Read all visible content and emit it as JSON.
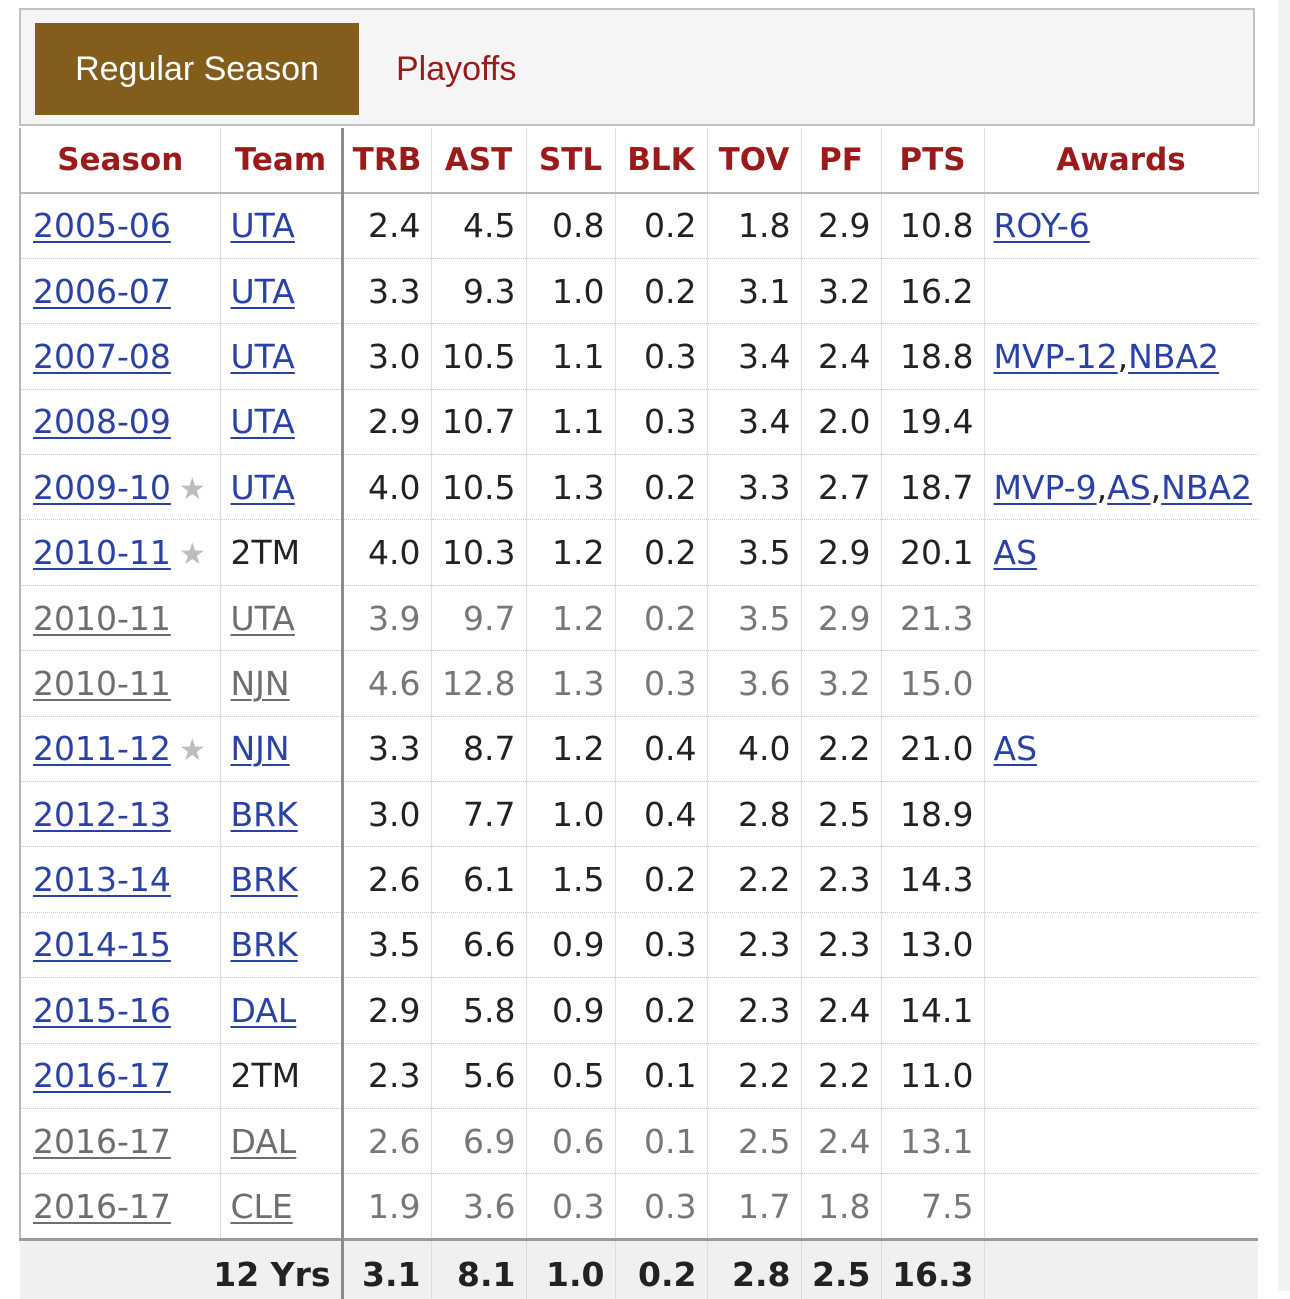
{
  "tabs": {
    "regular_season": "Regular Season",
    "playoffs": "Playoffs"
  },
  "colors": {
    "active_tab": "#835d1b",
    "header_text": "#9b1b1b",
    "link": "#2a41a6"
  },
  "headers": {
    "season": "Season",
    "team": "Team",
    "trb": "TRB",
    "ast": "AST",
    "stl": "STL",
    "blk": "BLK",
    "tov": "TOV",
    "pf": "PF",
    "pts": "PTS",
    "awards": "Awards"
  },
  "rows": [
    {
      "season": "2005-06",
      "team": "UTA",
      "trb": "2.4",
      "ast": "4.5",
      "stl": "0.8",
      "blk": "0.2",
      "tov": "1.8",
      "pf": "2.9",
      "pts": "10.8",
      "awards": [
        "ROY-6"
      ]
    },
    {
      "season": "2006-07",
      "team": "UTA",
      "trb": "3.3",
      "ast": "9.3",
      "stl": "1.0",
      "blk": "0.2",
      "tov": "3.1",
      "pf": "3.2",
      "pts": "16.2",
      "awards": []
    },
    {
      "season": "2007-08",
      "team": "UTA",
      "trb": "3.0",
      "ast": "10.5",
      "stl": "1.1",
      "blk": "0.3",
      "tov": "3.4",
      "pf": "2.4",
      "pts": "18.8",
      "awards": [
        "MVP-12",
        "NBA2"
      ]
    },
    {
      "season": "2008-09",
      "team": "UTA",
      "trb": "2.9",
      "ast": "10.7",
      "stl": "1.1",
      "blk": "0.3",
      "tov": "3.4",
      "pf": "2.0",
      "pts": "19.4",
      "awards": []
    },
    {
      "season": "2009-10",
      "team": "UTA",
      "trb": "4.0",
      "ast": "10.5",
      "stl": "1.3",
      "blk": "0.2",
      "tov": "3.3",
      "pf": "2.7",
      "pts": "18.7",
      "awards": [
        "MVP-9",
        "AS",
        "NBA2"
      ],
      "all_star": true
    },
    {
      "season": "2010-11",
      "team": "2TM",
      "team_link": false,
      "trb": "4.0",
      "ast": "10.3",
      "stl": "1.2",
      "blk": "0.2",
      "tov": "3.5",
      "pf": "2.9",
      "pts": "20.1",
      "awards": [
        "AS"
      ],
      "all_star": true
    },
    {
      "season": "2010-11",
      "team": "UTA",
      "partial": true,
      "trb": "3.9",
      "ast": "9.7",
      "stl": "1.2",
      "blk": "0.2",
      "tov": "3.5",
      "pf": "2.9",
      "pts": "21.3",
      "awards": []
    },
    {
      "season": "2010-11",
      "team": "NJN",
      "partial": true,
      "trb": "4.6",
      "ast": "12.8",
      "stl": "1.3",
      "blk": "0.3",
      "tov": "3.6",
      "pf": "3.2",
      "pts": "15.0",
      "awards": []
    },
    {
      "season": "2011-12",
      "team": "NJN",
      "trb": "3.3",
      "ast": "8.7",
      "stl": "1.2",
      "blk": "0.4",
      "tov": "4.0",
      "pf": "2.2",
      "pts": "21.0",
      "awards": [
        "AS"
      ],
      "all_star": true
    },
    {
      "season": "2012-13",
      "team": "BRK",
      "trb": "3.0",
      "ast": "7.7",
      "stl": "1.0",
      "blk": "0.4",
      "tov": "2.8",
      "pf": "2.5",
      "pts": "18.9",
      "awards": []
    },
    {
      "season": "2013-14",
      "team": "BRK",
      "trb": "2.6",
      "ast": "6.1",
      "stl": "1.5",
      "blk": "0.2",
      "tov": "2.2",
      "pf": "2.3",
      "pts": "14.3",
      "awards": []
    },
    {
      "season": "2014-15",
      "team": "BRK",
      "trb": "3.5",
      "ast": "6.6",
      "stl": "0.9",
      "blk": "0.3",
      "tov": "2.3",
      "pf": "2.3",
      "pts": "13.0",
      "awards": []
    },
    {
      "season": "2015-16",
      "team": "DAL",
      "trb": "2.9",
      "ast": "5.8",
      "stl": "0.9",
      "blk": "0.2",
      "tov": "2.3",
      "pf": "2.4",
      "pts": "14.1",
      "awards": []
    },
    {
      "season": "2016-17",
      "team": "2TM",
      "team_link": false,
      "trb": "2.3",
      "ast": "5.6",
      "stl": "0.5",
      "blk": "0.1",
      "tov": "2.2",
      "pf": "2.2",
      "pts": "11.0",
      "awards": []
    },
    {
      "season": "2016-17",
      "team": "DAL",
      "partial": true,
      "trb": "2.6",
      "ast": "6.9",
      "stl": "0.6",
      "blk": "0.1",
      "tov": "2.5",
      "pf": "2.4",
      "pts": "13.1",
      "awards": []
    },
    {
      "season": "2016-17",
      "team": "CLE",
      "partial": true,
      "trb": "1.9",
      "ast": "3.6",
      "stl": "0.3",
      "blk": "0.3",
      "tov": "1.7",
      "pf": "1.8",
      "pts": "7.5",
      "awards": []
    }
  ],
  "totals": {
    "label": "12 Yrs",
    "trb": "3.1",
    "ast": "8.1",
    "stl": "1.0",
    "blk": "0.2",
    "tov": "2.8",
    "pf": "2.5",
    "pts": "16.3"
  },
  "icons": {
    "all_star": "star-icon",
    "star_glyph": "★"
  }
}
